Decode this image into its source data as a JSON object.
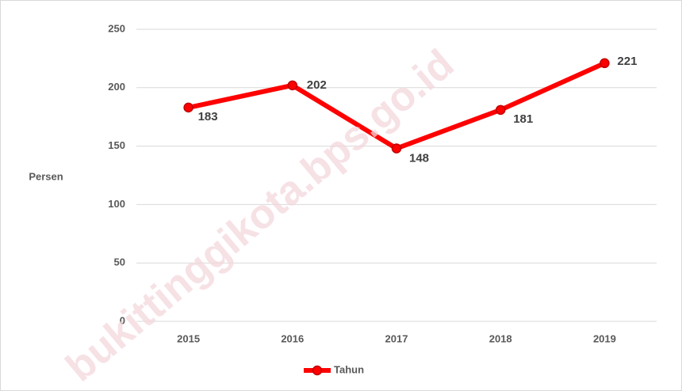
{
  "chart_data": {
    "type": "line",
    "y_label": "Persen",
    "categories": [
      "2015",
      "2016",
      "2017",
      "2018",
      "2019"
    ],
    "series": [
      {
        "name": "Tahun",
        "color": "#ff0000",
        "values": [
          183,
          202,
          148,
          181,
          221
        ]
      }
    ],
    "ylim": [
      0,
      250
    ],
    "yticks": [
      0,
      50,
      100,
      150,
      200,
      250
    ],
    "grid": true,
    "legend": "bottom",
    "watermark": "bukittinggikota.bps.go.id"
  }
}
